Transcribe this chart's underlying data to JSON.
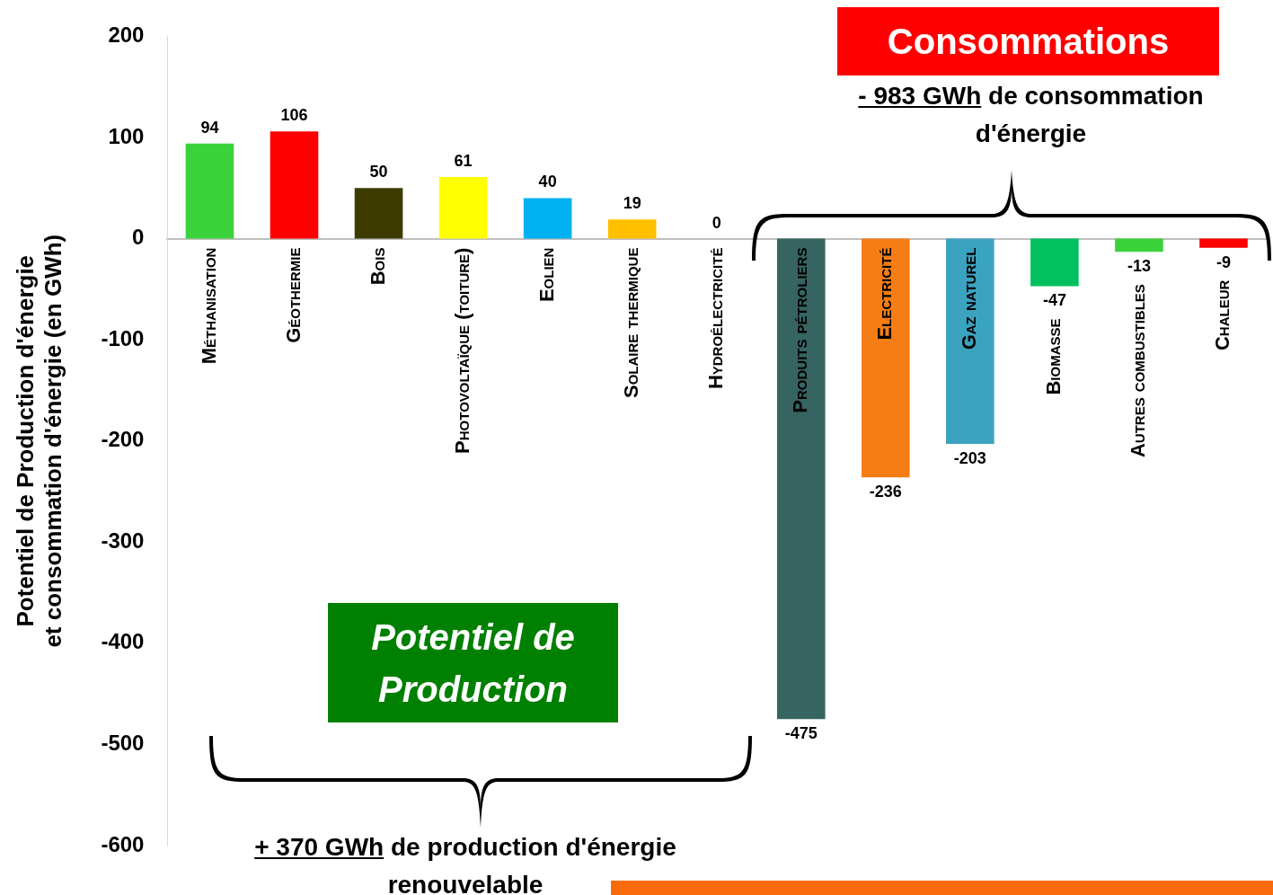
{
  "chart_data": {
    "type": "bar",
    "ylabel": "Potentiel de Production d'énergie\net consommation d'énergie (en GWh)",
    "categories": [
      "Méthanisation",
      "Géothermie",
      "Bois",
      "Photovoltaïque (toiture)",
      "Eolien",
      "Solaire thermique",
      "Hydroélectricité",
      "Produits pétroliers",
      "Electricité",
      "Gaz naturel",
      "Biomasse",
      "Autres combustibles",
      "Chaleur"
    ],
    "values": [
      94,
      106,
      50,
      61,
      40,
      19,
      0,
      -475,
      -236,
      -203,
      -47,
      -13,
      -9
    ],
    "colors": [
      "#3bd13b",
      "#ff0000",
      "#3d3a00",
      "#ffff00",
      "#00b0f0",
      "#ffc000",
      "#000000",
      "#366460",
      "#f57d14",
      "#3aa3c0",
      "#00c060",
      "#3bd13b",
      "#ff0000"
    ],
    "ylim": [
      -600,
      200
    ],
    "yticks": [
      -600,
      -500,
      -400,
      -300,
      -200,
      -100,
      0,
      100,
      200
    ],
    "data_labels": true,
    "grid": false,
    "legend": false,
    "annotations": [
      "Consommations",
      "- 983 GWh de consommation d'énergie",
      "Potentiel de Production",
      "+ 370 GWh de production d'énergie renouvelable"
    ]
  }
}
